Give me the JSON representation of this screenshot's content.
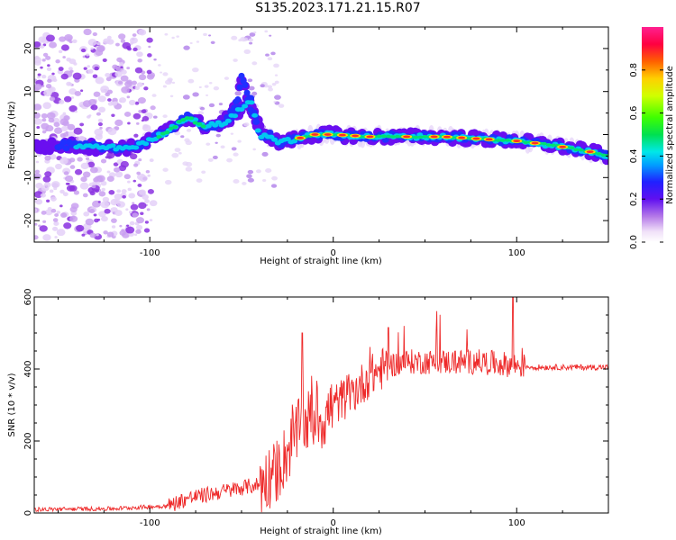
{
  "title": "S135.2023.171.21.15.R07",
  "chart_data": [
    {
      "type": "heatmap",
      "title": "",
      "xlabel": "Height of straight line (km)",
      "ylabel": "Frequency (Hz)",
      "xlim": [
        -163,
        150
      ],
      "ylim": [
        -25,
        25
      ],
      "xticks": [
        -100,
        0,
        100
      ],
      "yticks": [
        -20,
        -10,
        0,
        10,
        20
      ],
      "colorbar": {
        "label": "Normalized spectral amplitude",
        "range": [
          0,
          1
        ],
        "ticks": [
          "0.0",
          "0.2",
          "0.4",
          "0.6",
          "0.8"
        ]
      },
      "ridge": {
        "x": [
          -163,
          -145,
          -125,
          -110,
          -100,
          -90,
          -80,
          -70,
          -60,
          -50,
          -45,
          -40,
          -35,
          -30,
          -20,
          -10,
          0,
          20,
          40,
          60,
          80,
          100,
          120,
          140,
          150
        ],
        "frequency": [
          -3,
          -2.5,
          -3,
          -3,
          -1.5,
          1,
          4,
          2,
          2.5,
          6,
          8,
          -0.5,
          0,
          -2,
          -1,
          0,
          0,
          -0.5,
          -0.5,
          -0.5,
          -1,
          -1.5,
          -2.5,
          -4,
          -5
        ]
      },
      "branch": {
        "x": [
          -60,
          -55,
          -52,
          -50,
          -45,
          -40
        ],
        "frequency": [
          3,
          5,
          8,
          14,
          6,
          2
        ]
      }
    },
    {
      "type": "line",
      "title": "",
      "xlabel": "Height of straight line (km)",
      "ylabel": "SNR (10 * v/v)",
      "xlim": [
        -163,
        150
      ],
      "ylim": [
        0,
        600
      ],
      "xticks": [
        -100,
        0,
        100
      ],
      "yticks": [
        0,
        200,
        400,
        600
      ],
      "color": "#ee2a2a",
      "envelope": {
        "x": [
          -163,
          -120,
          -90,
          -80,
          -60,
          -40,
          -30,
          -20,
          -15,
          -10,
          -5,
          0,
          10,
          20,
          30,
          40,
          60,
          80,
          90,
          100,
          110,
          130,
          150
        ],
        "snr": [
          10,
          12,
          20,
          40,
          60,
          80,
          120,
          220,
          250,
          270,
          260,
          300,
          330,
          380,
          410,
          420,
          420,
          420,
          415,
          410,
          405,
          405,
          405
        ]
      }
    }
  ]
}
